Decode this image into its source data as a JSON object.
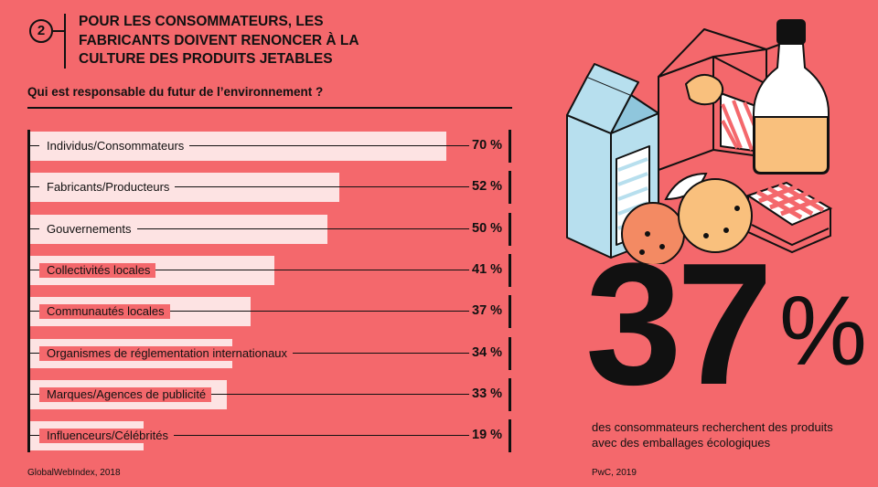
{
  "header": {
    "badge": "2",
    "title": "POUR LES CONSOMMATEURS, LES FABRICANTS DOIVENT RENONCER À LA CULTURE DES PRODUITS JETABLES",
    "question": "Qui est responsable du futur de l’environnement ?"
  },
  "chart_data": {
    "type": "bar",
    "orientation": "horizontal",
    "title": "Qui est responsable du futur de l’environnement ?",
    "categories": [
      "Individus/Consommateurs",
      "Fabricants/Producteurs",
      "Gouvernements",
      "Collectivités locales",
      "Communautés locales",
      "Organismes de réglementation internationaux",
      "Marques/Agences de publicité",
      "Influenceurs/Célébrités"
    ],
    "values": [
      70,
      52,
      50,
      41,
      37,
      34,
      33,
      19
    ],
    "value_labels": [
      "70 %",
      "52 %",
      "50 %",
      "41 %",
      "37 %",
      "34 %",
      "33 %",
      "19 %"
    ],
    "unit": "%",
    "xlim": [
      0,
      100
    ],
    "source": "GlobalWebIndex, 2018"
  },
  "stat": {
    "number": "37",
    "symbol": "%",
    "caption": "des consommateurs recherchent des produits avec des emballages écologiques",
    "source": "PwC, 2019"
  },
  "colors": {
    "background": "#f4686c",
    "bar": "#fde3e3",
    "ink": "#111111",
    "carton_blue": "#b7dfee",
    "bottle_fill": "#f9c07d",
    "orange": "#f38a63"
  },
  "illustration": {
    "icons": [
      "milk-carton-icon",
      "open-box-icon",
      "milk-bottle-icon",
      "orange-fruit-icon",
      "checkered-cloth-icon"
    ]
  }
}
